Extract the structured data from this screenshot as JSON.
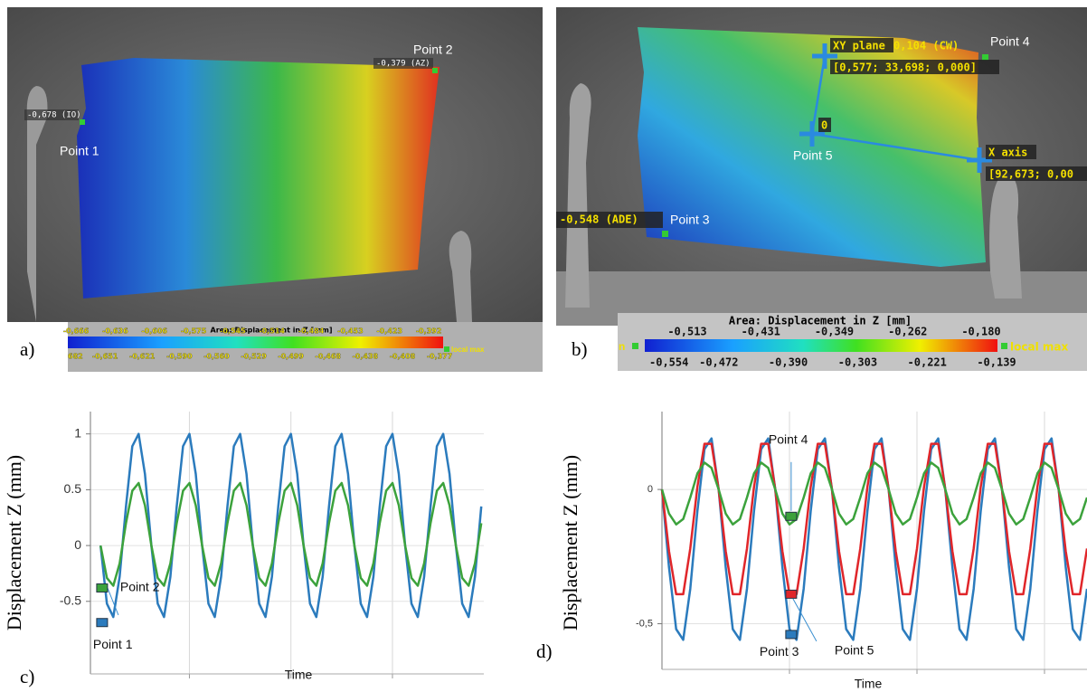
{
  "panel_a": {
    "tag": "a)",
    "labels": [
      "-0,678 (IO)",
      "Point 1",
      "-0,379 (AZ)",
      "Point 2"
    ],
    "colorbar": {
      "title": "Area: Displacement in Z [mm]",
      "top": [
        "-0,666",
        "-0,636",
        "-0,606",
        "-0,575",
        "-0,545",
        "-0,514",
        "-0,484",
        "-0,453",
        "-0,423",
        "-0,392"
      ],
      "bottom": [
        "682",
        "-0,651",
        "-0,621",
        "-0,590",
        "-0,560",
        "-0,529",
        "-0,499",
        "-0,468",
        "-0,438",
        "-0,408",
        "-0,377"
      ],
      "max_label": "local max"
    }
  },
  "panel_b": {
    "tag": "b)",
    "labels": [
      "XY plane",
      "0,104 (CW)",
      "[0,577; 33,698; 0,000]",
      "Point 4",
      "0",
      "Point 5",
      "X axis",
      "[92,673; 0,00",
      "-0,548 (ADE)",
      "Point 3"
    ],
    "colorbar": {
      "title": "Area: Displacement in Z [mm]",
      "top": [
        "-0,513",
        "-0,431",
        "-0,349",
        "-0,262",
        "-0,180"
      ],
      "bottom": [
        "-0,554",
        "-0,472",
        "-0,390",
        "-0,303",
        "-0,221",
        "-0,139"
      ],
      "min_label": "n",
      "max_label": "local max"
    }
  },
  "chart_data": [
    {
      "type": "line",
      "tag": "c)",
      "ylabel": "Displacement Z (mm)",
      "xlabel": "Time",
      "x": [
        0,
        0.125,
        0.25,
        0.375,
        0.5,
        0.625,
        0.75,
        0.875,
        1,
        1.125,
        1.25,
        1.375,
        1.5,
        1.625,
        1.75,
        1.875,
        2,
        2.125,
        2.25,
        2.375,
        2.5,
        2.625,
        2.75,
        2.875,
        3,
        3.125,
        3.25,
        3.375,
        3.5,
        3.625,
        3.75,
        3.875,
        4,
        4.125,
        4.25,
        4.375,
        4.5,
        4.625,
        4.75,
        4.875,
        5,
        5.125,
        5.25,
        5.375,
        5.5,
        5.625,
        5.75,
        5.875,
        6,
        6.125,
        6.25,
        6.375,
        6.5,
        6.625,
        6.75,
        6.875,
        7,
        7.125,
        7.25,
        7.375,
        7.5
      ],
      "xlim": [
        -0.2,
        7.55
      ],
      "xticks": [
        1.75,
        3.75,
        5.75
      ],
      "ylim": [
        -1.15,
        1.2
      ],
      "yticks": [
        -0.5,
        0,
        0.5,
        1
      ],
      "grid": true,
      "series": [
        {
          "color": "#2b7bbd",
          "values": [
            0,
            -0.52,
            -0.64,
            -0.28,
            0.35,
            0.89,
            1,
            0.64,
            0,
            -0.52,
            -0.64,
            -0.28,
            0.35,
            0.89,
            1,
            0.64,
            0,
            -0.52,
            -0.64,
            -0.28,
            0.35,
            0.89,
            1,
            0.64,
            0,
            -0.52,
            -0.64,
            -0.28,
            0.35,
            0.89,
            1,
            0.64,
            0,
            -0.52,
            -0.64,
            -0.28,
            0.35,
            0.89,
            1,
            0.64,
            0,
            -0.52,
            -0.64,
            -0.28,
            0.35,
            0.89,
            1,
            0.64,
            0,
            -0.52,
            -0.64,
            -0.28,
            0.35,
            0.89,
            1,
            0.64,
            0,
            -0.52,
            -0.64,
            -0.28,
            0.35
          ]
        },
        {
          "color": "#3ca23c",
          "values": [
            0,
            -0.29,
            -0.36,
            -0.16,
            0.2,
            0.49,
            0.56,
            0.36,
            0,
            -0.29,
            -0.36,
            -0.16,
            0.2,
            0.49,
            0.56,
            0.36,
            0,
            -0.29,
            -0.36,
            -0.16,
            0.2,
            0.49,
            0.56,
            0.36,
            0,
            -0.29,
            -0.36,
            -0.16,
            0.2,
            0.49,
            0.56,
            0.36,
            0,
            -0.29,
            -0.36,
            -0.16,
            0.2,
            0.49,
            0.56,
            0.36,
            0,
            -0.29,
            -0.36,
            -0.16,
            0.2,
            0.49,
            0.56,
            0.36,
            0,
            -0.29,
            -0.36,
            -0.16,
            0.2,
            0.49,
            0.56,
            0.36,
            0,
            -0.29,
            -0.36,
            -0.16,
            0.2
          ]
        }
      ],
      "markers": [
        {
          "label": "Point 1",
          "x": 0.03,
          "y": -0.69,
          "color": "#2b7bbd"
        },
        {
          "label": "Point 2",
          "x": 0.03,
          "y": -0.38,
          "color": "#3ca23c"
        }
      ]
    },
    {
      "type": "line",
      "tag": "d)",
      "ylabel": "Displacement Z (mm)",
      "xlabel": "Time",
      "x": [
        0,
        0.125,
        0.25,
        0.375,
        0.5,
        0.625,
        0.75,
        0.875,
        1,
        1.125,
        1.25,
        1.375,
        1.5,
        1.625,
        1.75,
        1.875,
        2,
        2.125,
        2.25,
        2.375,
        2.5,
        2.625,
        2.75,
        2.875,
        3,
        3.125,
        3.25,
        3.375,
        3.5,
        3.625,
        3.75,
        3.875,
        4,
        4.125,
        4.25,
        4.375,
        4.5,
        4.625,
        4.75,
        4.875,
        5,
        5.125,
        5.25,
        5.375,
        5.5,
        5.625,
        5.75,
        5.875,
        6,
        6.125,
        6.25,
        6.375,
        6.5,
        6.625,
        6.75,
        6.875,
        7,
        7.125,
        7.25,
        7.375,
        7.5
      ],
      "xlim": [
        0,
        7.5
      ],
      "xticks": [
        2.25,
        4.5,
        6.75
      ],
      "ylim": [
        -0.67,
        0.29
      ],
      "yticks": [
        {
          "value": -0.5,
          "label": "-0,5"
        },
        0
      ],
      "grid": true,
      "series": [
        {
          "color": "#2b7bbd",
          "values": [
            0,
            -0.29,
            -0.52,
            -0.56,
            -0.37,
            -0.08,
            0.15,
            0.19,
            0,
            -0.29,
            -0.52,
            -0.56,
            -0.37,
            -0.08,
            0.15,
            0.19,
            0,
            -0.29,
            -0.52,
            -0.56,
            -0.37,
            -0.08,
            0.15,
            0.19,
            0,
            -0.29,
            -0.52,
            -0.56,
            -0.37,
            -0.08,
            0.15,
            0.19,
            0,
            -0.29,
            -0.52,
            -0.56,
            -0.37,
            -0.08,
            0.15,
            0.19,
            0,
            -0.29,
            -0.52,
            -0.56,
            -0.37,
            -0.08,
            0.15,
            0.19,
            0,
            -0.29,
            -0.52,
            -0.56,
            -0.37,
            -0.08,
            0.15,
            0.19,
            0,
            -0.29,
            -0.52,
            -0.56,
            -0.37
          ]
        },
        {
          "color": "#e0262a",
          "values": [
            0,
            -0.23,
            -0.39,
            -0.39,
            -0.22,
            0.01,
            0.17,
            0.17,
            0,
            -0.23,
            -0.39,
            -0.39,
            -0.22,
            0.01,
            0.17,
            0.17,
            0,
            -0.23,
            -0.39,
            -0.39,
            -0.22,
            0.01,
            0.17,
            0.17,
            0,
            -0.23,
            -0.39,
            -0.39,
            -0.22,
            0.01,
            0.17,
            0.17,
            0,
            -0.23,
            -0.39,
            -0.39,
            -0.22,
            0.01,
            0.17,
            0.17,
            0,
            -0.23,
            -0.39,
            -0.39,
            -0.22,
            0.01,
            0.17,
            0.17,
            0,
            -0.23,
            -0.39,
            -0.39,
            -0.22,
            0.01,
            0.17,
            0.17,
            0,
            -0.23,
            -0.39,
            -0.39,
            -0.22
          ]
        },
        {
          "color": "#3ca23c",
          "values": [
            0,
            -0.09,
            -0.13,
            -0.11,
            -0.03,
            0.06,
            0.1,
            0.08,
            0,
            -0.09,
            -0.13,
            -0.11,
            -0.03,
            0.06,
            0.1,
            0.08,
            0,
            -0.09,
            -0.13,
            -0.11,
            -0.03,
            0.06,
            0.1,
            0.08,
            0,
            -0.09,
            -0.13,
            -0.11,
            -0.03,
            0.06,
            0.1,
            0.08,
            0,
            -0.09,
            -0.13,
            -0.11,
            -0.03,
            0.06,
            0.1,
            0.08,
            0,
            -0.09,
            -0.13,
            -0.11,
            -0.03,
            0.06,
            0.1,
            0.08,
            0,
            -0.09,
            -0.13,
            -0.11,
            -0.03,
            0.06,
            0.1,
            0.08,
            0,
            -0.09,
            -0.13,
            -0.11,
            -0.03
          ]
        }
      ],
      "markers": [
        {
          "label": "Point 4",
          "x": 2.28,
          "y": -0.1,
          "color": "#3ca23c"
        },
        {
          "label": "Point 5",
          "x": 2.28,
          "y": -0.39,
          "color": "#e0262a"
        },
        {
          "label": "Point 3",
          "x": 2.28,
          "y": -0.54,
          "color": "#2b7bbd"
        }
      ]
    }
  ]
}
